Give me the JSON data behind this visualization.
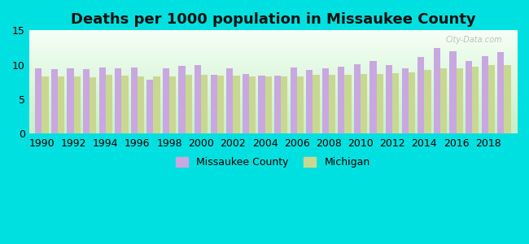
{
  "title": "Deaths per 1000 population in Missaukee County",
  "background_color": "#00e0e0",
  "years": [
    1990,
    1991,
    1992,
    1993,
    1994,
    1995,
    1996,
    1997,
    1998,
    1999,
    2000,
    2001,
    2002,
    2003,
    2004,
    2005,
    2006,
    2007,
    2008,
    2009,
    2010,
    2011,
    2012,
    2013,
    2014,
    2015,
    2016,
    2017,
    2018,
    2019
  ],
  "missaukee": [
    9.5,
    9.4,
    9.5,
    9.4,
    9.6,
    9.5,
    9.6,
    7.8,
    9.5,
    9.8,
    9.9,
    8.5,
    9.5,
    8.7,
    8.4,
    8.4,
    9.6,
    9.3,
    9.5,
    9.7,
    10.1,
    10.5,
    9.9,
    9.5,
    11.1,
    12.4,
    12.0,
    10.5,
    11.2,
    11.8
  ],
  "michigan": [
    8.3,
    8.3,
    8.3,
    8.2,
    8.5,
    8.4,
    8.3,
    8.3,
    8.3,
    8.5,
    8.5,
    8.4,
    8.4,
    8.3,
    8.3,
    8.3,
    8.3,
    8.5,
    8.5,
    8.5,
    8.6,
    8.7,
    8.8,
    8.9,
    9.3,
    9.5,
    9.5,
    9.7,
    10.0,
    10.0
  ],
  "missaukee_color": "#c8a8e0",
  "michigan_color": "#c8d890",
  "ylim": [
    0,
    15
  ],
  "yticks": [
    0,
    5,
    10,
    15
  ],
  "xlabel_fontsize": 9,
  "ylabel_fontsize": 9,
  "title_fontsize": 13,
  "bar_width": 0.42,
  "watermark": "City-Data.com",
  "plot_color_top": "#f5fff5",
  "plot_color_bottom": "#c8eec8"
}
